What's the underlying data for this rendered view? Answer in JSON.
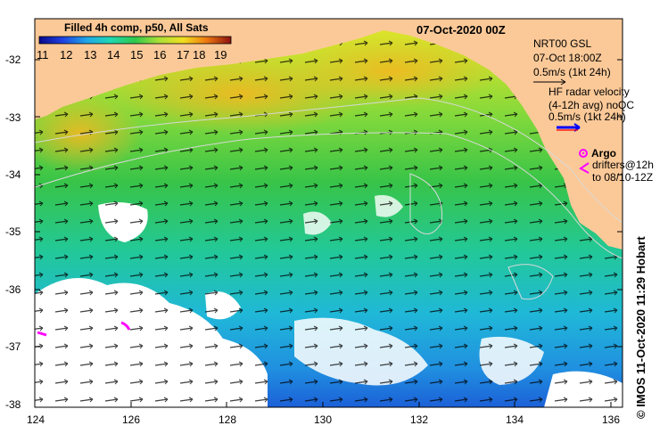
{
  "map": {
    "title": "07-Oct-2020 00Z",
    "colorbar": {
      "title": "Filled 4h comp, p50, All Sats",
      "ticks": [
        "11",
        "12",
        "13",
        "14",
        "15",
        "16",
        "17",
        "18",
        "19"
      ]
    },
    "y_ticks": [
      "-32",
      "-33",
      "-34",
      "-35",
      "-36",
      "-37",
      "-38"
    ],
    "x_ticks": [
      "124",
      "126",
      "128",
      "130",
      "132",
      "134",
      "136"
    ],
    "legend": {
      "gsl_title": "NRT00 GSL",
      "gsl_time": "07-Oct 18:00Z",
      "gsl_scale": "0.5m/s (1kt 24h)",
      "hf_line1": "HF radar velocity",
      "hf_line2": "(4-12h avg) noQC",
      "hf_scale": "0.5m/s (1kt 24h)",
      "argo_label": "Argo",
      "drifters_line1": "drifters@12h",
      "drifters_line2": "to 08/10-12Z"
    },
    "credit": "© IMOS 11-Oct-2020 11:29 Hobart",
    "colors": {
      "land": "#fbc998",
      "argo": "#ff00ff",
      "hf_arrow": "#0000ff",
      "hf_arrow_tail": "#ff0000"
    }
  }
}
